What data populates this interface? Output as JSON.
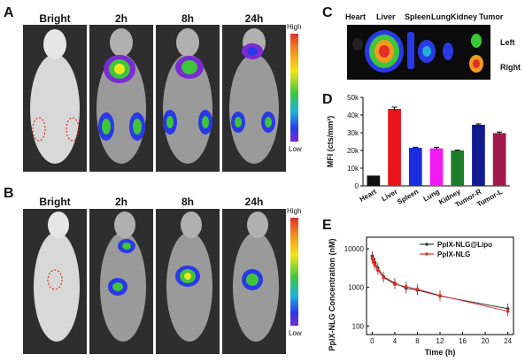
{
  "panels": {
    "A": {
      "letter": "A",
      "times": [
        "Bright",
        "2h",
        "8h",
        "24h"
      ],
      "scale_high": "High",
      "scale_low": "Low"
    },
    "B": {
      "letter": "B",
      "times": [
        "Bright",
        "2h",
        "8h",
        "24h"
      ],
      "scale_high": "High",
      "scale_low": "Low"
    },
    "C": {
      "letter": "C",
      "organs": [
        "Heart",
        "Liver",
        "Spleen",
        "Lung",
        "Kidney",
        "Tumor"
      ],
      "side_left": "Left",
      "side_right": "Right"
    },
    "D": {
      "letter": "D"
    },
    "E": {
      "letter": "E"
    }
  },
  "chart_data": [
    {
      "type": "bar",
      "ylabel": "MFI (cts/mm²)",
      "categories": [
        "Heart",
        "Liver",
        "Spleen",
        "Lung",
        "Kidney",
        "Tumor-R",
        "Tumor-L"
      ],
      "values": [
        5800,
        43500,
        21500,
        21200,
        20000,
        34500,
        29800
      ],
      "errors": [
        0,
        1000,
        300,
        600,
        200,
        500,
        600
      ],
      "colors": [
        "#111111",
        "#e8141a",
        "#1a2ee0",
        "#f21af2",
        "#1e7d2a",
        "#121a8f",
        "#a0194a"
      ],
      "ylim": [
        0,
        50000
      ],
      "yticks": [
        "0",
        "10k",
        "20k",
        "30k",
        "40k",
        "50k"
      ]
    },
    {
      "type": "line",
      "xlabel": "Time (h)",
      "ylabel": "PpIX-NLG Concentration (nM)",
      "yscale": "log",
      "xlim": [
        -1,
        25
      ],
      "ylim": [
        60,
        20000
      ],
      "xticks": [
        0,
        4,
        8,
        12,
        16,
        20,
        24
      ],
      "yticks": [
        "100",
        "1000",
        "10000"
      ],
      "legend_position": "top-right",
      "series": [
        {
          "name": "PpIX-NLG@Lipo",
          "color": "#3a3a3a",
          "x": [
            0,
            0.25,
            0.5,
            1,
            2,
            4,
            6,
            8,
            12,
            24
          ],
          "y": [
            6500,
            5200,
            4400,
            3200,
            1900,
            1300,
            950,
            850,
            600,
            280
          ]
        },
        {
          "name": "PpIX-NLG",
          "color": "#e03030",
          "x": [
            0,
            0.25,
            0.5,
            1,
            2,
            4,
            6,
            8,
            12,
            24
          ],
          "y": [
            5500,
            4600,
            3800,
            2800,
            1800,
            1200,
            1050,
            900,
            620,
            240
          ]
        }
      ]
    }
  ]
}
